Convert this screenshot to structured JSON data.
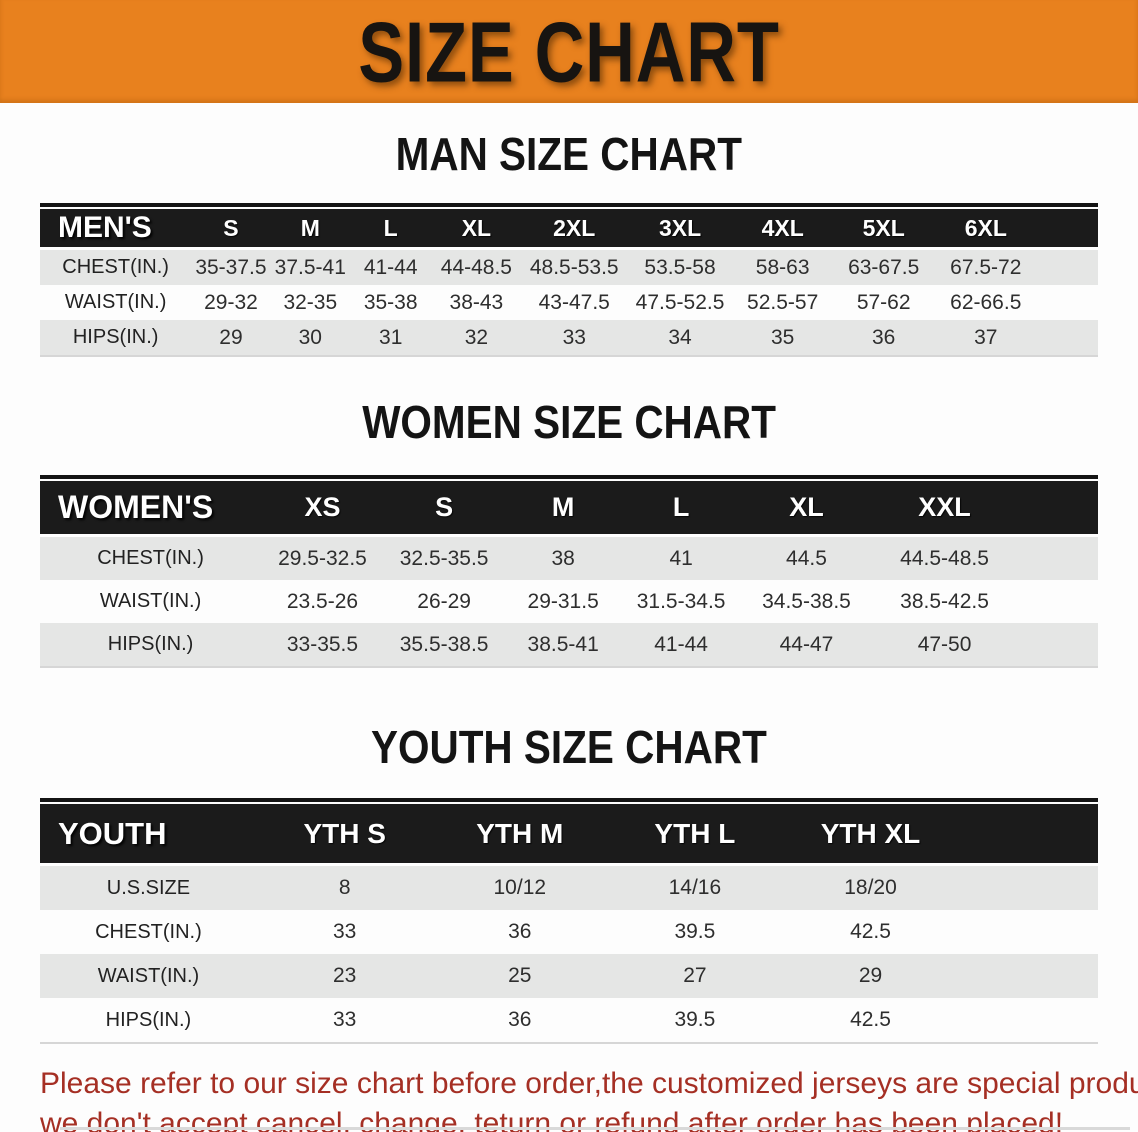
{
  "banner": {
    "title": "SIZE CHART",
    "bg_color": "#E8811E",
    "text_color": "#171411"
  },
  "men": {
    "heading": "MAN SIZE CHART",
    "label": "MEN'S",
    "columns": [
      "S",
      "M",
      "L",
      "XL",
      "2XL",
      "3XL",
      "4XL",
      "5XL",
      "6XL"
    ],
    "rows": [
      {
        "label": "CHEST(IN.)",
        "values": [
          "35-37.5",
          "37.5-41",
          "41-44",
          "44-48.5",
          "48.5-53.5",
          "53.5-58",
          "58-63",
          "63-67.5",
          "67.5-72"
        ]
      },
      {
        "label": "WAIST(IN.)",
        "values": [
          "29-32",
          "32-35",
          "35-38",
          "38-43",
          "43-47.5",
          "47.5-52.5",
          "52.5-57",
          "57-62",
          "62-66.5"
        ]
      },
      {
        "label": "HIPS(IN.)",
        "values": [
          "29",
          "30",
          "31",
          "32",
          "33",
          "34",
          "35",
          "36",
          "37"
        ]
      }
    ]
  },
  "women": {
    "heading": "WOMEN SIZE CHART",
    "label": "WOMEN'S",
    "columns": [
      "XS",
      "S",
      "M",
      "L",
      "XL",
      "XXL"
    ],
    "rows": [
      {
        "label": "CHEST(IN.)",
        "values": [
          "29.5-32.5",
          "32.5-35.5",
          "38",
          "41",
          "44.5",
          "44.5-48.5"
        ]
      },
      {
        "label": "WAIST(IN.)",
        "values": [
          "23.5-26",
          "26-29",
          "29-31.5",
          "31.5-34.5",
          "34.5-38.5",
          "38.5-42.5"
        ]
      },
      {
        "label": "HIPS(IN.)",
        "values": [
          "33-35.5",
          "35.5-38.5",
          "38.5-41",
          "41-44",
          "44-47",
          "47-50"
        ]
      }
    ]
  },
  "youth": {
    "heading": "YOUTH SIZE CHART",
    "label": "YOUTH",
    "columns": [
      "YTH S",
      "YTH M",
      "YTH L",
      "YTH XL"
    ],
    "rows": [
      {
        "label": "U.S.SIZE",
        "values": [
          "8",
          "10/12",
          "14/16",
          "18/20"
        ]
      },
      {
        "label": "CHEST(IN.)",
        "values": [
          "33",
          "36",
          "39.5",
          "42.5"
        ]
      },
      {
        "label": "WAIST(IN.)",
        "values": [
          "23",
          "25",
          "27",
          "29"
        ]
      },
      {
        "label": "HIPS(IN.)",
        "values": [
          "33",
          "36",
          "39.5",
          "42.5"
        ]
      }
    ]
  },
  "disclaimer": {
    "line1": "Please refer to our size chart before order,the customized jerseys are special products,",
    "line2": "we don't accept cancel, change, teturn or refund after order has been placed!",
    "color": "#A52F24"
  },
  "theme": {
    "header_black": "#1b1b1b",
    "stripe_gray": "#E5E6E5"
  }
}
